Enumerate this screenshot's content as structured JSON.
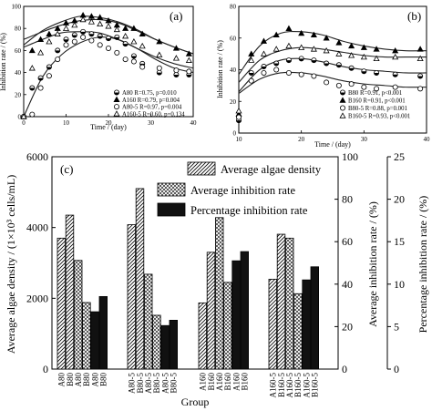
{
  "chart_data": [
    {
      "panel": "(a)",
      "type": "scatter",
      "xlabel": "Time / (day)",
      "ylabel": "Inhibition rate / (%)",
      "xlim": [
        0,
        40
      ],
      "ylim": [
        0,
        100
      ],
      "xticks": [
        "0",
        "10",
        "20",
        "30",
        "40"
      ],
      "yticks": [
        "0",
        "20",
        "40",
        "60",
        "80",
        "100"
      ],
      "legend": "bottom-right",
      "series": [
        {
          "name": "A80",
          "stat": "R=0.75, p=0.010",
          "marker": "half-circle",
          "x": [
            0,
            2,
            4,
            6,
            8,
            10,
            12,
            14,
            16,
            18,
            20,
            22,
            24,
            26,
            28,
            32,
            36,
            39
          ],
          "y": [
            0,
            26,
            35,
            45,
            60,
            70,
            74,
            77,
            75,
            73,
            71,
            72,
            66,
            55,
            48,
            40,
            38,
            38
          ],
          "fit": [
            0,
            36,
            56,
            67,
            72,
            70,
            62,
            52,
            44,
            40
          ]
        },
        {
          "name": "A160",
          "stat": "R=0.79, p=0.004",
          "marker": "filled-triangle",
          "x": [
            0,
            2,
            4,
            6,
            8,
            10,
            12,
            14,
            16,
            18,
            20,
            22,
            24,
            26,
            28,
            32,
            36,
            39
          ],
          "y": [
            0,
            60,
            70,
            75,
            80,
            85,
            87,
            92,
            91,
            90,
            87,
            83,
            80,
            80,
            75,
            68,
            62,
            57
          ],
          "fit": [
            65,
            78,
            86,
            91,
            90,
            86,
            79,
            70,
            63,
            57
          ]
        },
        {
          "name": "A80-5",
          "stat": "R=0.97, p=0.004",
          "marker": "open-circle",
          "x": [
            0,
            2,
            4,
            6,
            8,
            10,
            12,
            14,
            16,
            18,
            20,
            22,
            24,
            26,
            28,
            32,
            36,
            39
          ],
          "y": [
            0,
            2,
            26,
            37,
            52,
            65,
            68,
            72,
            69,
            65,
            62,
            58,
            52,
            50,
            45,
            44,
            42,
            41
          ],
          "fit": [
            63,
            70,
            76,
            77,
            76,
            70,
            62,
            54,
            48,
            44
          ]
        },
        {
          "name": "A160-5",
          "stat": "R=0.60, p=0.134",
          "marker": "open-triangle",
          "x": [
            0,
            2,
            4,
            6,
            8,
            10,
            12,
            14,
            16,
            18,
            20,
            22,
            24,
            26,
            28,
            32,
            36,
            39
          ],
          "y": [
            0,
            44,
            58,
            68,
            75,
            80,
            83,
            88,
            86,
            84,
            82,
            79,
            73,
            68,
            64,
            56,
            53,
            51
          ],
          "fit": [
            70,
            77,
            83,
            87,
            88,
            85,
            78,
            70,
            63,
            57
          ]
        }
      ]
    },
    {
      "panel": "(b)",
      "type": "scatter",
      "xlabel": "Time / (day)",
      "ylabel": "Inhibition rate / (%)",
      "xlim": [
        10,
        40
      ],
      "ylim": [
        0,
        80
      ],
      "xticks": [
        "10",
        "20",
        "30",
        "40"
      ],
      "yticks": [
        "0",
        "20",
        "40",
        "60",
        "80"
      ],
      "legend": "bottom-right",
      "series": [
        {
          "name": "B80",
          "stat": "R=0.91, p<0.001",
          "marker": "half-circle",
          "x": [
            10,
            12,
            14,
            16,
            18,
            20,
            22,
            24,
            26,
            28,
            30,
            32,
            35,
            39
          ],
          "y": [
            8,
            38,
            42,
            44,
            46,
            47,
            46,
            44,
            43,
            41,
            39,
            38,
            37,
            36
          ],
          "fit": [
            26,
            40,
            46,
            47,
            45,
            42,
            40,
            39,
            38,
            38
          ]
        },
        {
          "name": "B160",
          "stat": "R=0.91, p<0.001",
          "marker": "filled-triangle",
          "x": [
            10,
            12,
            14,
            16,
            18,
            20,
            22,
            24,
            26,
            28,
            30,
            32,
            35,
            39
          ],
          "y": [
            12,
            50,
            58,
            62,
            66,
            63,
            62,
            60,
            57,
            55,
            54,
            53,
            52,
            53
          ],
          "fit": [
            37,
            55,
            63,
            64,
            62,
            58,
            55,
            53,
            52,
            52
          ]
        },
        {
          "name": "B80-5",
          "stat": "R=0.88, p=0.001",
          "marker": "open-circle",
          "x": [
            10,
            12,
            14,
            16,
            18,
            20,
            22,
            24,
            26,
            28,
            30,
            32,
            35,
            39
          ],
          "y": [
            10,
            33,
            38,
            40,
            38,
            37,
            36,
            32,
            30,
            31,
            29,
            28,
            29,
            28
          ],
          "fit": [
            25,
            34,
            38,
            38,
            36,
            33,
            31,
            30,
            29,
            29
          ]
        },
        {
          "name": "B160-5",
          "stat": "R=0.93, p<0.001",
          "marker": "open-triangle",
          "x": [
            10,
            12,
            14,
            16,
            18,
            20,
            22,
            24,
            26,
            28,
            30,
            32,
            35,
            39
          ],
          "y": [
            14,
            46,
            50,
            53,
            55,
            54,
            53,
            52,
            50,
            49,
            48,
            47,
            48,
            47
          ],
          "fit": [
            32,
            46,
            52,
            54,
            53,
            51,
            49,
            48,
            48,
            48
          ]
        }
      ]
    },
    {
      "panel": "(c)",
      "type": "bar",
      "xlabel": "Group",
      "ylabel_left": "Average algae density / (1×10³ cells/mL)",
      "ylabel_mid": "Average inhibition rate / (%)",
      "ylabel_right": "Percentage inhibition rate / (%)",
      "ylim_left": [
        0,
        6000
      ],
      "ylim_mid": [
        0,
        100
      ],
      "ylim_right": [
        0,
        25
      ],
      "yticks_left": [
        "0",
        "2000",
        "4000",
        "6000"
      ],
      "yticks_mid": [
        "0",
        "20",
        "40",
        "60",
        "80",
        "100"
      ],
      "yticks_right": [
        "0",
        "5",
        "10",
        "15",
        "20",
        "25"
      ],
      "legend": "top-center",
      "series_names": [
        "Average algae density",
        "Average inhibition rate",
        "Percentage inhibition rate"
      ],
      "categories": [
        [
          "A80",
          "B80",
          "A80",
          "B80",
          "A80",
          "B80"
        ],
        [
          "A80-5",
          "B80-5",
          "A80-5",
          "B80-5",
          "A80-5",
          "B80-5"
        ],
        [
          "A160",
          "B160",
          "A160",
          "B160",
          "A160",
          "B160"
        ],
        [
          "A160-5",
          "B160-5",
          "A160-5",
          "B160-5",
          "A160-5",
          "B160-5"
        ]
      ],
      "series_by_bar": [
        0,
        0,
        1,
        1,
        2,
        2
      ],
      "values": [
        [
          3700,
          4350,
          3070,
          1880,
          1620,
          2050
        ],
        [
          4080,
          5100,
          2680,
          1520,
          1230,
          1380
        ],
        [
          1870,
          3300,
          4280,
          2450,
          3060,
          3320
        ],
        [
          2540,
          3810,
          3700,
          2130,
          2520,
          2890
        ]
      ]
    }
  ],
  "panel_labels": {
    "a": "(a)",
    "b": "(b)",
    "c": "(c)"
  },
  "legend_a": [
    "A80",
    "A160",
    "A80-5",
    "A160-5"
  ],
  "stats_a": [
    "R=0.75, p=0.010",
    "R=0.79, p=0.004",
    "R=0.97, p=0.004",
    "R=0.60, p=0.134"
  ],
  "legend_b": [
    "B80",
    "B160",
    "B80-5",
    "B160-5"
  ],
  "stats_b": [
    "R=0.91, p<0.001",
    "R=0.91, p<0.001",
    "R=0.88, p=0.001",
    "R=0.93, p<0.001"
  ],
  "colors": {
    "ink": "#000000",
    "paper": "#ffffff",
    "fill_dark": "#111111",
    "line": "#222222"
  }
}
